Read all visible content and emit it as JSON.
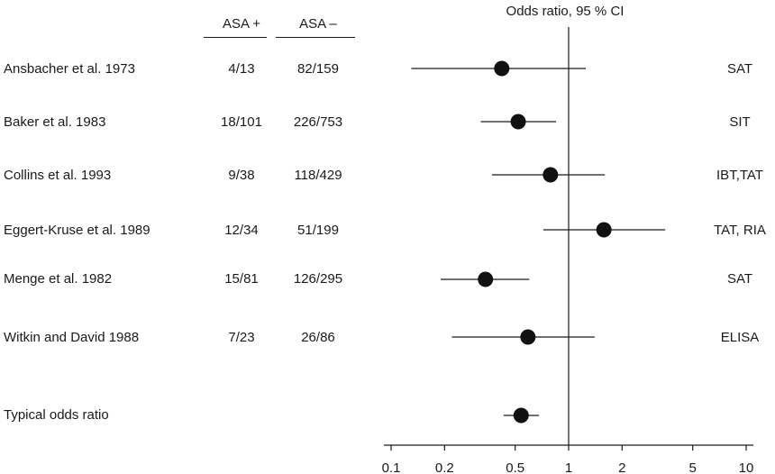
{
  "headers": {
    "asa_pos": "ASA +",
    "asa_neg": "ASA –"
  },
  "chart_data": {
    "type": "forest",
    "title": "Odds ratio, 95 % CI",
    "x_scale": "log",
    "xlim": [
      0.1,
      10
    ],
    "x_ticks": [
      0.1,
      0.2,
      0.5,
      1,
      2,
      5,
      10
    ],
    "x_tick_labels": [
      "0.1",
      "0.2",
      "0.5",
      "1",
      "2",
      "5",
      "10"
    ],
    "reference_line": 1,
    "studies": [
      {
        "name": "Ansbacher et al. 1973",
        "asa_pos": "4/13",
        "asa_neg": "82/159",
        "method": "SAT",
        "or": 0.42,
        "ci": [
          0.13,
          1.25
        ]
      },
      {
        "name": "Baker et al. 1983",
        "asa_pos": "18/101",
        "asa_neg": "226/753",
        "method": "SIT",
        "or": 0.52,
        "ci": [
          0.32,
          0.85
        ]
      },
      {
        "name": "Collins et al. 1993",
        "asa_pos": "9/38",
        "asa_neg": "118/429",
        "method": "IBT,TAT",
        "or": 0.79,
        "ci": [
          0.37,
          1.6
        ]
      },
      {
        "name": "Eggert-Kruse et al. 1989",
        "asa_pos": "12/34",
        "asa_neg": "51/199",
        "method": "TAT, RIA",
        "or": 1.58,
        "ci": [
          0.72,
          3.5
        ]
      },
      {
        "name": "Menge et al. 1982",
        "asa_pos": "15/81",
        "asa_neg": "126/295",
        "method": "SAT",
        "or": 0.34,
        "ci": [
          0.19,
          0.6
        ]
      },
      {
        "name": "Witkin and David 1988",
        "asa_pos": "7/23",
        "asa_neg": "26/86",
        "method": "ELISA",
        "or": 0.59,
        "ci": [
          0.22,
          1.4
        ]
      }
    ],
    "summary": {
      "name": "Typical odds ratio",
      "or": 0.54,
      "ci": [
        0.43,
        0.68
      ]
    }
  }
}
